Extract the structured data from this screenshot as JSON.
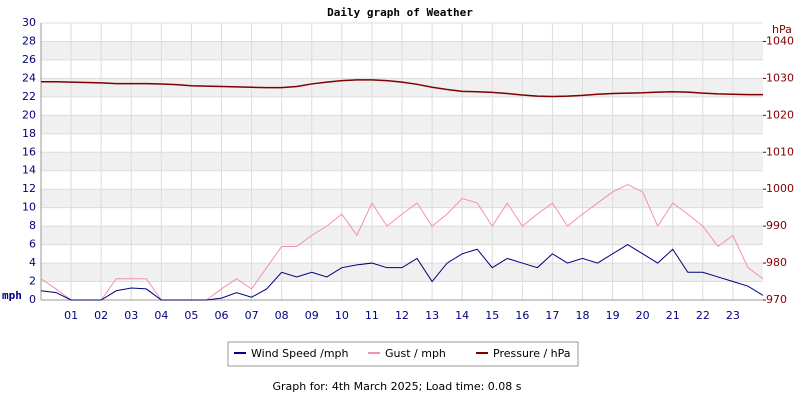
{
  "chart_data": {
    "type": "line",
    "title": "Daily graph of Weather",
    "y_label": "mph",
    "y2_label": "hPa",
    "footer": "Graph for: 4th March 2025; Load time: 0.08 s",
    "x": [
      0,
      0.5,
      1,
      1.5,
      2,
      2.5,
      3,
      3.5,
      4,
      4.5,
      5,
      5.5,
      6,
      6.5,
      7,
      7.5,
      8,
      8.5,
      9,
      9.5,
      10,
      10.5,
      11,
      11.5,
      12,
      12.5,
      13,
      13.5,
      14,
      14.5,
      15,
      15.5,
      16,
      16.5,
      17,
      17.5,
      18,
      18.5,
      19,
      19.5,
      20,
      20.5,
      21,
      21.5,
      22,
      22.5,
      23,
      23.5,
      24
    ],
    "xlim": [
      0,
      24
    ],
    "xticks": [
      {
        "value": 1,
        "label": "01"
      },
      {
        "value": 2,
        "label": "02"
      },
      {
        "value": 3,
        "label": "03"
      },
      {
        "value": 4,
        "label": "04"
      },
      {
        "value": 5,
        "label": "05"
      },
      {
        "value": 6,
        "label": "06"
      },
      {
        "value": 7,
        "label": "07"
      },
      {
        "value": 8,
        "label": "08"
      },
      {
        "value": 9,
        "label": "09"
      },
      {
        "value": 10,
        "label": "10"
      },
      {
        "value": 11,
        "label": "11"
      },
      {
        "value": 12,
        "label": "12"
      },
      {
        "value": 13,
        "label": "13"
      },
      {
        "value": 14,
        "label": "14"
      },
      {
        "value": 15,
        "label": "15"
      },
      {
        "value": 16,
        "label": "16"
      },
      {
        "value": 17,
        "label": "17"
      },
      {
        "value": 18,
        "label": "18"
      },
      {
        "value": 19,
        "label": "19"
      },
      {
        "value": 20,
        "label": "20"
      },
      {
        "value": 21,
        "label": "21"
      },
      {
        "value": 22,
        "label": "22"
      },
      {
        "value": 23,
        "label": "23"
      }
    ],
    "ylim": [
      0,
      30
    ],
    "yticks": [
      0,
      2,
      4,
      6,
      8,
      10,
      12,
      14,
      16,
      18,
      20,
      22,
      24,
      26,
      28,
      30
    ],
    "y2lim": [
      970,
      1045
    ],
    "y2ticks": [
      970,
      980,
      990,
      1000,
      1010,
      1020,
      1030,
      1040
    ],
    "grid": true,
    "series": [
      {
        "name": "Wind Speed /mph",
        "color": "#000080",
        "values": [
          1.0,
          0.8,
          0,
          0,
          0,
          1.0,
          1.3,
          1.2,
          0,
          0,
          0,
          0,
          0.2,
          0.8,
          0.3,
          1.2,
          3.0,
          2.5,
          3.0,
          2.5,
          3.5,
          3.8,
          4.0,
          3.5,
          3.5,
          4.5,
          2.0,
          4.0,
          5.0,
          5.5,
          3.5,
          4.5,
          4.0,
          3.5,
          5.0,
          4.0,
          4.5,
          4.0,
          5.0,
          6.0,
          5.0,
          4.0,
          5.5,
          3.0,
          3.0,
          2.5,
          2.0,
          1.5,
          0.5
        ]
      },
      {
        "name": "Gust / mph",
        "color": "#f48fb1",
        "values": [
          2.3,
          1.2,
          0,
          0,
          0,
          2.3,
          2.3,
          2.3,
          0,
          0,
          0,
          0,
          1.2,
          2.3,
          1.2,
          3.5,
          5.8,
          5.8,
          7,
          8,
          9.3,
          7,
          10.5,
          8,
          9.3,
          10.5,
          8,
          9.3,
          11,
          10.5,
          8,
          10.5,
          8,
          9.3,
          10.5,
          8,
          9.3,
          10.5,
          11.7,
          12.5,
          11.7,
          8,
          10.5,
          9.3,
          8,
          5.8,
          7,
          3.5,
          2.3
        ]
      },
      {
        "name": "Pressure / hPa",
        "color": "#800000",
        "axis": "y2",
        "values": [
          1029.1,
          1029.1,
          1029.0,
          1028.9,
          1028.8,
          1028.6,
          1028.6,
          1028.6,
          1028.5,
          1028.3,
          1028.0,
          1027.9,
          1027.8,
          1027.7,
          1027.6,
          1027.5,
          1027.5,
          1027.8,
          1028.5,
          1029.0,
          1029.4,
          1029.6,
          1029.6,
          1029.4,
          1029.0,
          1028.4,
          1027.6,
          1027.0,
          1026.5,
          1026.4,
          1026.2,
          1025.9,
          1025.5,
          1025.2,
          1025.1,
          1025.2,
          1025.4,
          1025.7,
          1025.9,
          1026.0,
          1026.1,
          1026.3,
          1026.4,
          1026.3,
          1026.0,
          1025.8,
          1025.7,
          1025.6,
          1025.6
        ]
      }
    ]
  }
}
